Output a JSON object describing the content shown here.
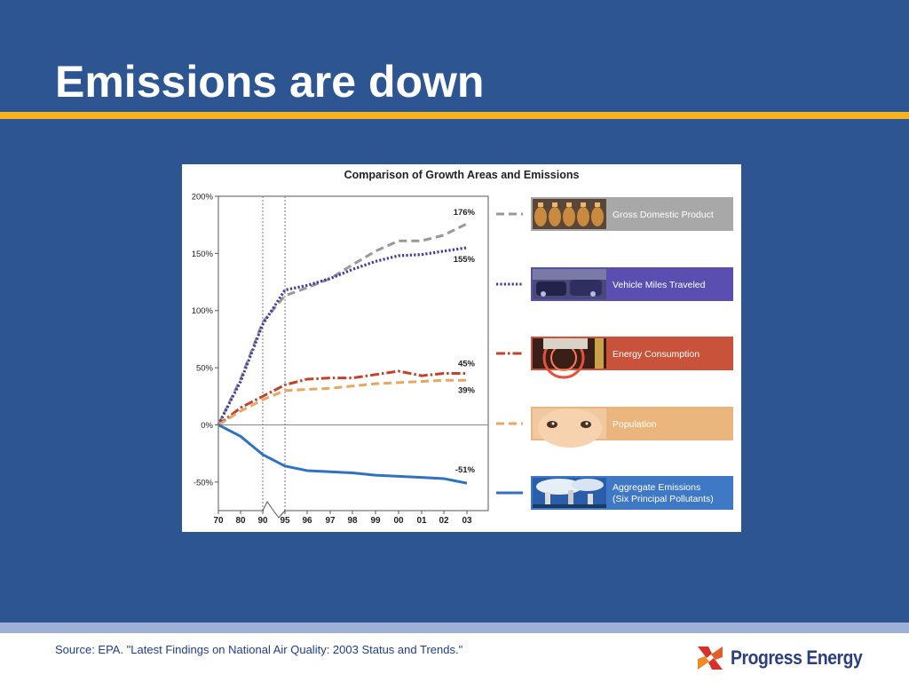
{
  "slide": {
    "title": "Emissions are down",
    "source": "Source: EPA. \"Latest Findings on National Air Quality: 2003 Status and Trends.\"",
    "logo_text": "Progress Energy"
  },
  "colors": {
    "background": "#2d5591",
    "title_rule": "#f5b321",
    "footer_band": "#9fb0d6"
  },
  "chart_data": {
    "type": "line",
    "title": "Comparison of Growth Areas and Emissions",
    "x": [
      "70",
      "80",
      "90",
      "95",
      "96",
      "97",
      "98",
      "99",
      "00",
      "01",
      "02",
      "03"
    ],
    "y_ticks": [
      "200%",
      "150%",
      "100%",
      "50%",
      "0%",
      "-50%"
    ],
    "y_tick_values": [
      200,
      150,
      100,
      50,
      0,
      -50
    ],
    "ylim": [
      -75,
      200
    ],
    "axis_break_between": [
      "90",
      "95"
    ],
    "reference_lines_at": [
      "90",
      "95"
    ],
    "series": [
      {
        "name": "Gross Domestic Product",
        "color": "#999999",
        "style": "dashed",
        "values": [
          0,
          40,
          90,
          113,
          120,
          128,
          140,
          152,
          161,
          161,
          166,
          176
        ],
        "end_label": "176%",
        "icon": "money-bags-photo",
        "legend_color": "#a8a8a8"
      },
      {
        "name": "Vehicle Miles Traveled",
        "color": "#3d3d9e",
        "style": "dotted",
        "values": [
          0,
          38,
          88,
          118,
          122,
          128,
          136,
          143,
          148,
          149,
          152,
          155
        ],
        "end_label": "155%",
        "icon": "traffic-photo",
        "legend_color": "#5a4fb0"
      },
      {
        "name": "Energy Consumption",
        "color": "#c0432b",
        "style": "dashdot",
        "values": [
          0,
          15,
          25,
          35,
          40,
          41,
          41,
          44,
          47,
          43,
          45,
          45
        ],
        "end_label": "45%",
        "icon": "burner-photo",
        "legend_color": "#c8533a"
      },
      {
        "name": "Population",
        "color": "#e8a663",
        "style": "dashed",
        "values": [
          0,
          12,
          22,
          30,
          31,
          32,
          34,
          36,
          37,
          38,
          39,
          39
        ],
        "end_label": "39%",
        "icon": "baby-photo",
        "legend_color": "#eab67e"
      },
      {
        "name": "Aggregate Emissions\n(Six Principal Pollutants)",
        "color": "#2f72c2",
        "style": "solid",
        "values": [
          0,
          -10,
          -26,
          -36,
          -40,
          -41,
          -42,
          -44,
          -45,
          -46,
          -47,
          -51
        ],
        "end_label": "-51%",
        "icon": "smokestack-photo",
        "legend_color": "#3f78c4"
      }
    ]
  }
}
